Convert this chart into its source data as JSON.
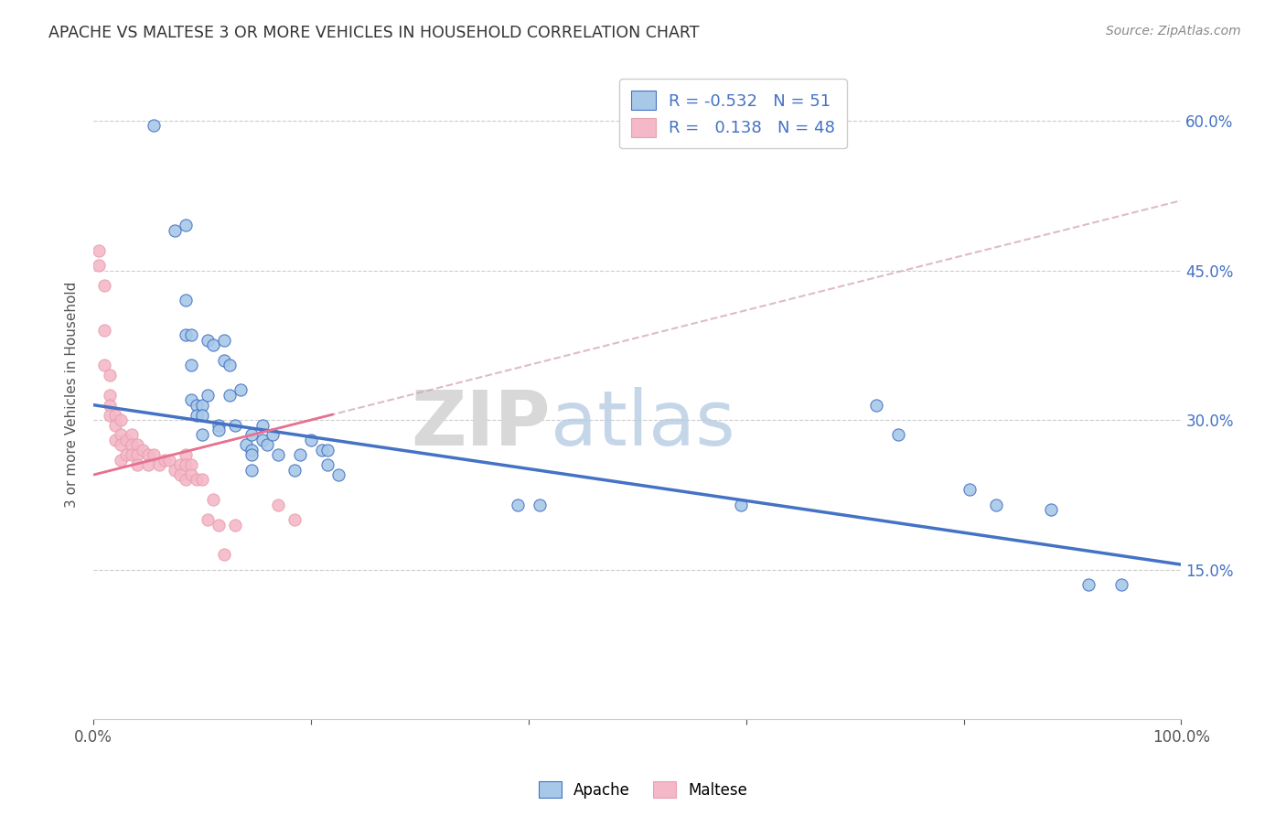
{
  "title": "APACHE VS MALTESE 3 OR MORE VEHICLES IN HOUSEHOLD CORRELATION CHART",
  "source": "Source: ZipAtlas.com",
  "ylabel": "3 or more Vehicles in Household",
  "xlim": [
    0,
    1.0
  ],
  "ylim": [
    0,
    0.65
  ],
  "apache_color": "#a8c8e8",
  "maltese_color": "#f4b8c8",
  "apache_line_color": "#4472c4",
  "maltese_line_color": "#e8a0b0",
  "legend_apache_R": "-0.532",
  "legend_apache_N": "51",
  "legend_maltese_R": "0.138",
  "legend_maltese_N": "48",
  "watermark_zip": "ZIP",
  "watermark_atlas": "atlas",
  "apache_trendline": [
    0.0,
    1.0,
    0.315,
    0.155
  ],
  "maltese_trendline": [
    0.0,
    1.0,
    0.245,
    0.52
  ],
  "apache_x": [
    0.055,
    0.075,
    0.085,
    0.085,
    0.085,
    0.09,
    0.09,
    0.09,
    0.095,
    0.095,
    0.1,
    0.1,
    0.1,
    0.105,
    0.105,
    0.11,
    0.115,
    0.115,
    0.12,
    0.12,
    0.125,
    0.125,
    0.13,
    0.135,
    0.14,
    0.145,
    0.145,
    0.145,
    0.145,
    0.155,
    0.155,
    0.16,
    0.165,
    0.17,
    0.185,
    0.19,
    0.2,
    0.21,
    0.215,
    0.215,
    0.225,
    0.39,
    0.41,
    0.595,
    0.72,
    0.74,
    0.805,
    0.83,
    0.88,
    0.915,
    0.945
  ],
  "apache_y": [
    0.595,
    0.49,
    0.495,
    0.42,
    0.385,
    0.385,
    0.355,
    0.32,
    0.315,
    0.305,
    0.315,
    0.305,
    0.285,
    0.38,
    0.325,
    0.375,
    0.295,
    0.29,
    0.38,
    0.36,
    0.355,
    0.325,
    0.295,
    0.33,
    0.275,
    0.285,
    0.27,
    0.265,
    0.25,
    0.295,
    0.28,
    0.275,
    0.285,
    0.265,
    0.25,
    0.265,
    0.28,
    0.27,
    0.27,
    0.255,
    0.245,
    0.215,
    0.215,
    0.215,
    0.315,
    0.285,
    0.23,
    0.215,
    0.21,
    0.135,
    0.135
  ],
  "maltese_x": [
    0.005,
    0.005,
    0.01,
    0.01,
    0.01,
    0.015,
    0.015,
    0.015,
    0.015,
    0.02,
    0.02,
    0.02,
    0.025,
    0.025,
    0.025,
    0.025,
    0.03,
    0.03,
    0.035,
    0.035,
    0.035,
    0.04,
    0.04,
    0.04,
    0.045,
    0.05,
    0.05,
    0.055,
    0.06,
    0.065,
    0.07,
    0.075,
    0.08,
    0.08,
    0.085,
    0.085,
    0.085,
    0.09,
    0.09,
    0.095,
    0.1,
    0.105,
    0.11,
    0.115,
    0.12,
    0.13,
    0.17,
    0.185
  ],
  "maltese_y": [
    0.47,
    0.455,
    0.435,
    0.39,
    0.355,
    0.345,
    0.325,
    0.315,
    0.305,
    0.305,
    0.295,
    0.28,
    0.3,
    0.285,
    0.275,
    0.26,
    0.28,
    0.265,
    0.285,
    0.275,
    0.265,
    0.275,
    0.265,
    0.255,
    0.27,
    0.265,
    0.255,
    0.265,
    0.255,
    0.26,
    0.26,
    0.25,
    0.255,
    0.245,
    0.265,
    0.255,
    0.24,
    0.255,
    0.245,
    0.24,
    0.24,
    0.2,
    0.22,
    0.195,
    0.165,
    0.195,
    0.215,
    0.2
  ]
}
